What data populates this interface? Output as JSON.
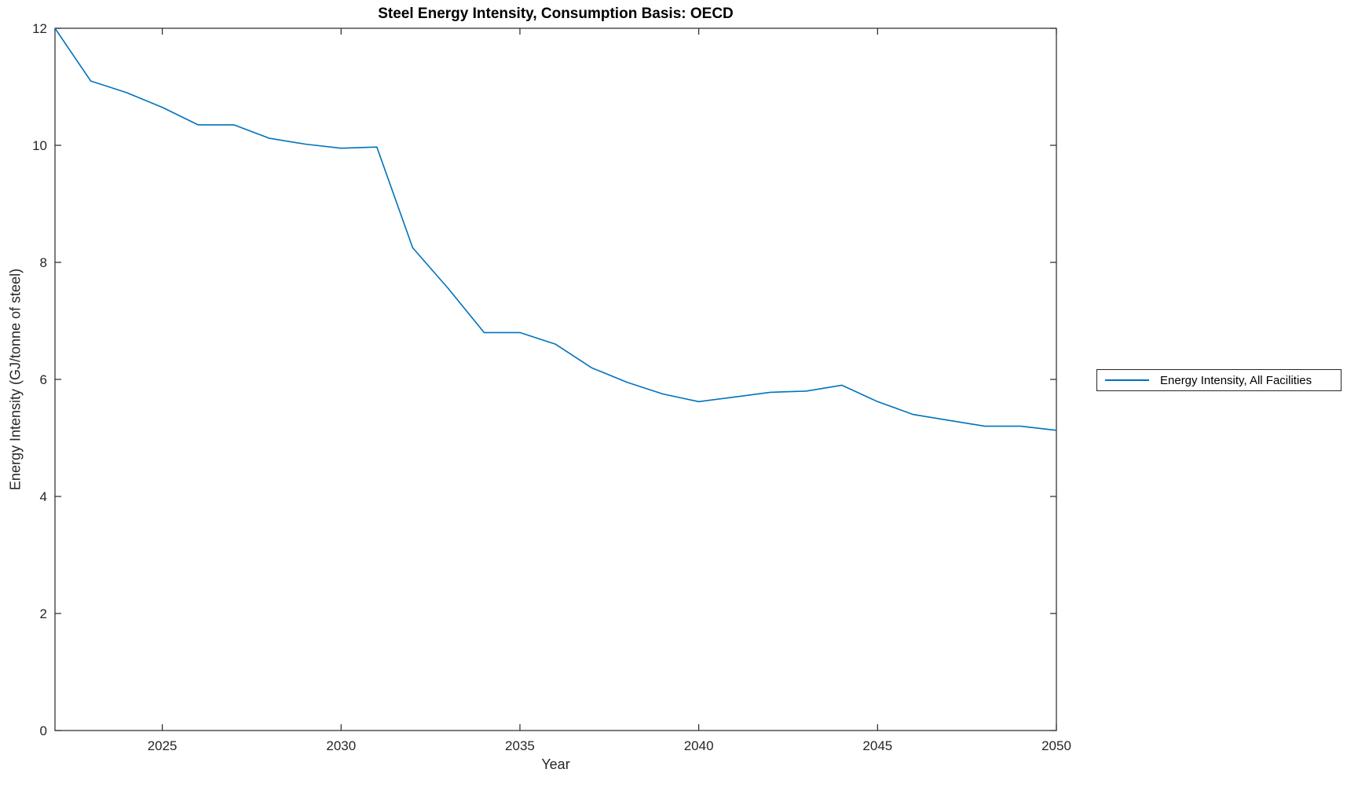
{
  "chart_data": {
    "type": "line",
    "title": "Steel Energy Intensity, Consumption Basis: OECD",
    "xlabel": "Year",
    "ylabel": "Energy Intensity (GJ/tonne of steel)",
    "xlim": [
      2022,
      2050
    ],
    "ylim": [
      0,
      12
    ],
    "xticks": [
      2025,
      2030,
      2035,
      2040,
      2045,
      2050
    ],
    "yticks": [
      0,
      2,
      4,
      6,
      8,
      10,
      12
    ],
    "grid": false,
    "legend": {
      "position": "outside-right",
      "entries": [
        "Energy Intensity, All Facilities"
      ]
    },
    "axis_color": "#262626",
    "series": [
      {
        "name": "Energy Intensity, All Facilities",
        "color": "#0072BD",
        "x": [
          2022,
          2023,
          2024,
          2025,
          2026,
          2027,
          2028,
          2029,
          2030,
          2031,
          2032,
          2033,
          2034,
          2035,
          2036,
          2037,
          2038,
          2039,
          2040,
          2041,
          2042,
          2043,
          2044,
          2045,
          2046,
          2047,
          2048,
          2049,
          2050
        ],
        "y": [
          12.0,
          11.1,
          10.9,
          10.65,
          10.35,
          10.35,
          10.12,
          10.02,
          9.95,
          9.97,
          8.25,
          7.55,
          6.8,
          6.8,
          6.6,
          6.2,
          5.95,
          5.75,
          5.62,
          5.7,
          5.78,
          5.8,
          5.9,
          5.62,
          5.4,
          5.3,
          5.2,
          5.2,
          5.13
        ]
      }
    ]
  }
}
